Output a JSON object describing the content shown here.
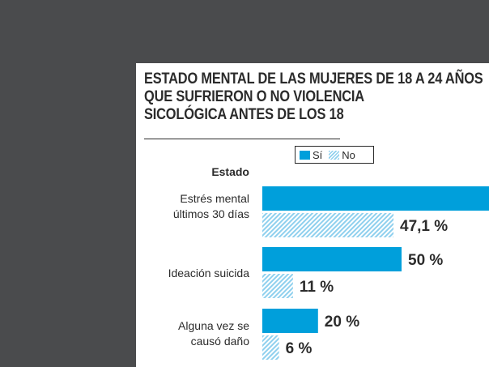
{
  "title_lines": [
    "ESTADO MENTAL DE LAS MUJERES DE 18 A 24 AÑOS",
    "QUE SUFRIERON O NO VIOLENCIA",
    "SICOLÓGICA ANTES DE LOS 18"
  ],
  "colors": {
    "si": "#009fdb",
    "no_hatch": "#8fd0ee",
    "text": "#2b2b2b",
    "page_bg": "#4a4b4d"
  },
  "chart_data": {
    "type": "bar",
    "orientation": "horizontal",
    "title": "ESTADO MENTAL DE LAS MUJERES DE 18 A 24 AÑOS QUE SUFRIERON O NO VIOLENCIA SICOLÓGICA ANTES DE LOS 18",
    "ylabel": "Estado",
    "legend": [
      "Sí",
      "No"
    ],
    "categories": [
      "Estrés mental\núltimos 30 días",
      "Ideación suicida",
      "Alguna vez se\ncausó daño"
    ],
    "series": [
      {
        "name": "Sí",
        "values": [
          null,
          50,
          20
        ],
        "labels": [
          "",
          "50 %",
          "20 %"
        ]
      },
      {
        "name": "No",
        "values": [
          47.1,
          11,
          6
        ],
        "labels": [
          "47,1 %",
          "11 %",
          "6 %"
        ]
      }
    ],
    "xlim": [
      0,
      50
    ]
  }
}
